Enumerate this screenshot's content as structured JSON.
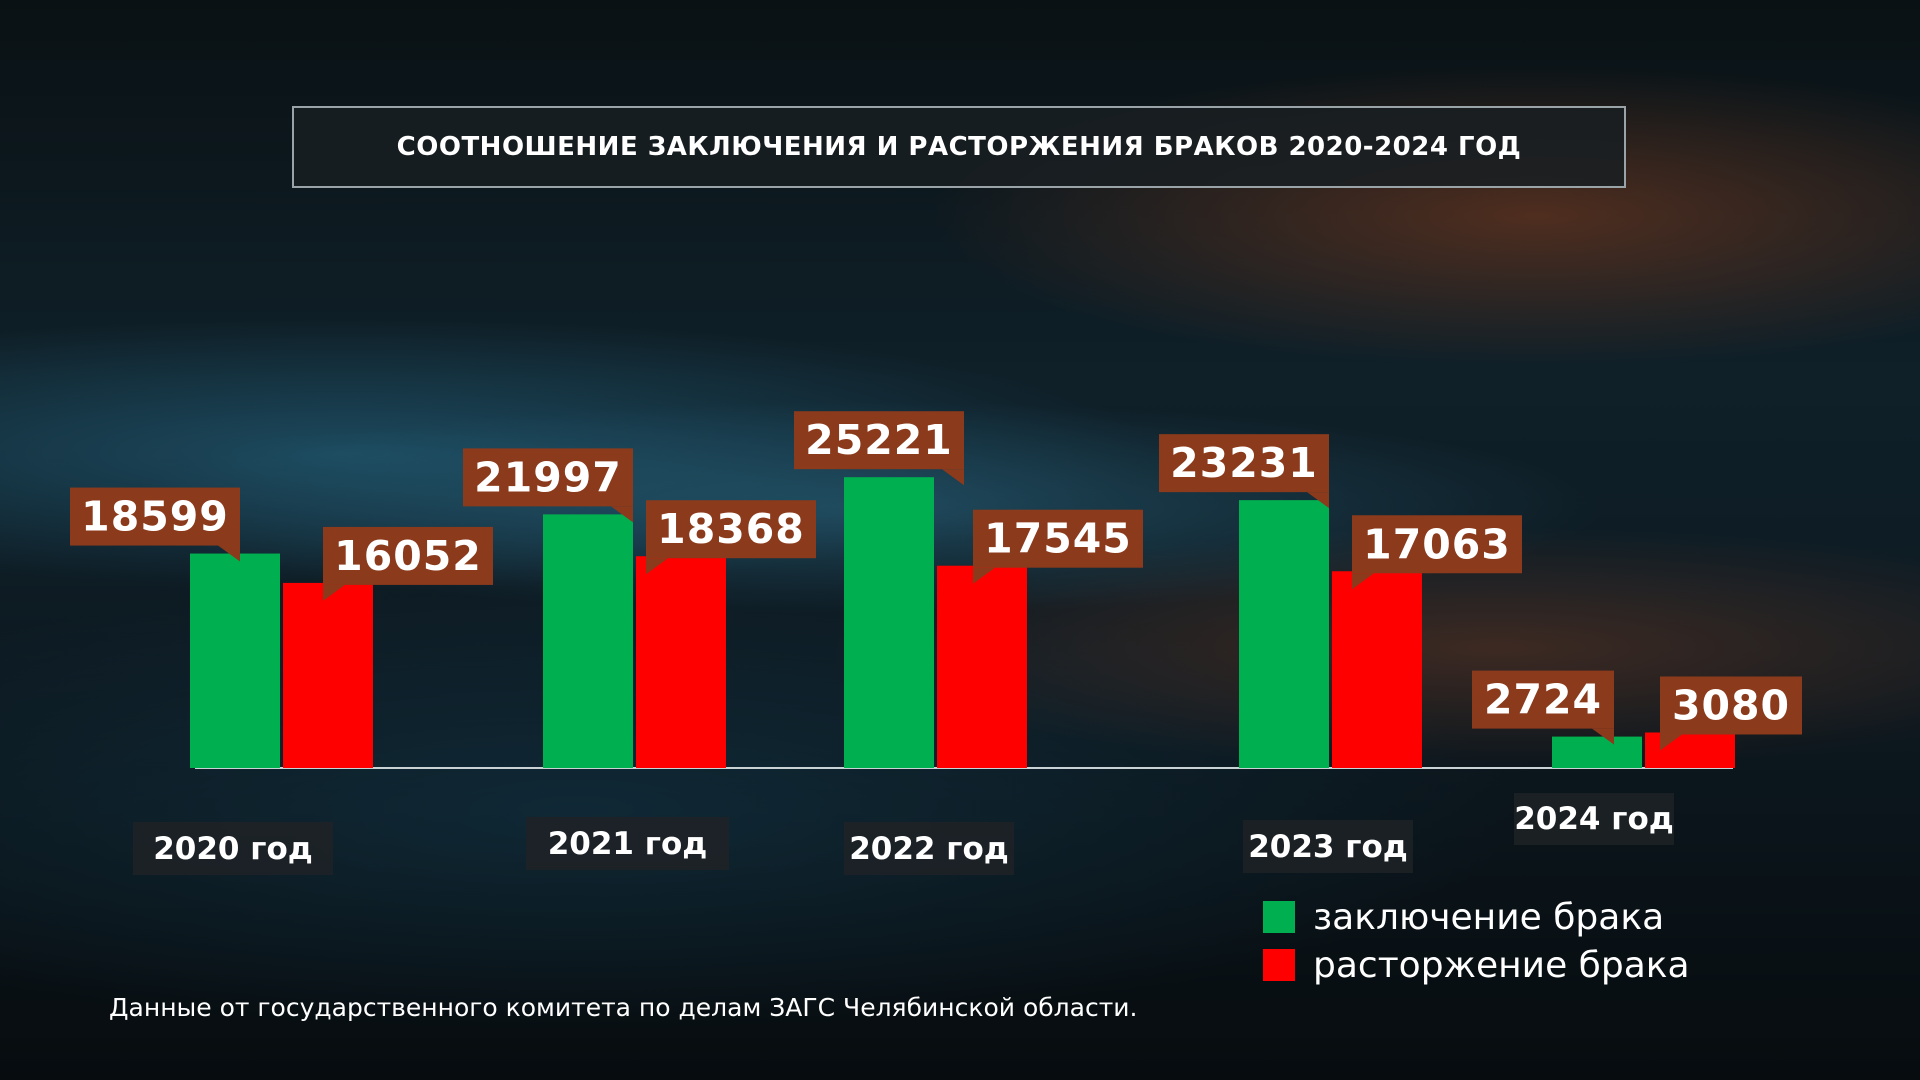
{
  "chart_data": {
    "type": "bar",
    "title": "СООТНОШЕНИЕ ЗАКЛЮЧЕНИЯ И РАСТОРЖЕНИЯ БРАКОВ 2020-2024 ГОД",
    "categories": [
      "2020 год",
      "2021 год",
      "2022 год",
      "2023 год",
      "2024 год"
    ],
    "series": [
      {
        "name": "заключение брака",
        "color": "#00b050",
        "values": [
          18599,
          21997,
          25221,
          23231,
          2724
        ]
      },
      {
        "name": "расторжение брака",
        "color": "#ff0000",
        "values": [
          16052,
          18368,
          17545,
          17063,
          3080
        ]
      }
    ],
    "ylim": [
      0,
      28000
    ],
    "grid": false,
    "legend_position": "bottom-right",
    "label_color": "#8b3a1c"
  },
  "source_note": "Данные от государственного комитета по делам ЗАГС Челябинской области."
}
